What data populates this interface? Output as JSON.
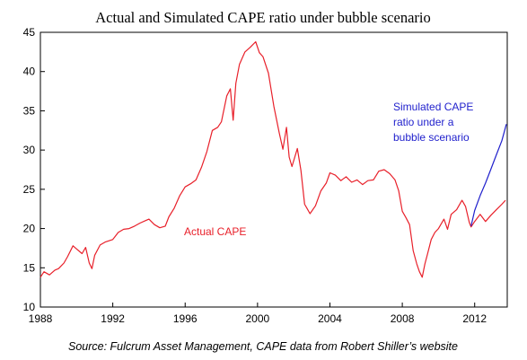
{
  "chart_data": {
    "type": "line",
    "title": "Actual and Simulated CAPE ratio under bubble scenario",
    "xlim": [
      1988,
      2013.8
    ],
    "ylim": [
      10,
      45
    ],
    "x_ticks": [
      "1988",
      "1992",
      "1996",
      "2000",
      "2004",
      "2008",
      "2012"
    ],
    "y_ticks": [
      "10",
      "15",
      "20",
      "25",
      "30",
      "35",
      "40",
      "45"
    ],
    "grid": false,
    "series": [
      {
        "name": "Actual CAPE",
        "color": "#e8202a",
        "label_lines": [
          "Actual CAPE"
        ],
        "x": [
          1988.0,
          1988.2,
          1988.5,
          1988.8,
          1989.0,
          1989.3,
          1989.5,
          1989.8,
          1990.0,
          1990.3,
          1990.5,
          1990.7,
          1990.85,
          1991.0,
          1991.3,
          1991.6,
          1992.0,
          1992.3,
          1992.6,
          1992.9,
          1993.2,
          1993.5,
          1993.8,
          1994.0,
          1994.3,
          1994.6,
          1994.9,
          1995.1,
          1995.4,
          1995.7,
          1996.0,
          1996.3,
          1996.6,
          1996.9,
          1997.2,
          1997.5,
          1997.8,
          1998.0,
          1998.3,
          1998.5,
          1998.65,
          1998.8,
          1999.0,
          1999.3,
          1999.6,
          1999.9,
          2000.1,
          2000.3,
          2000.6,
          2000.9,
          2001.2,
          2001.4,
          2001.6,
          2001.75,
          2001.9,
          2002.2,
          2002.4,
          2002.6,
          2002.75,
          2002.9,
          2003.2,
          2003.5,
          2003.8,
          2004.0,
          2004.3,
          2004.6,
          2004.9,
          2005.2,
          2005.5,
          2005.8,
          2006.1,
          2006.4,
          2006.7,
          2007.0,
          2007.3,
          2007.6,
          2007.8,
          2008.0,
          2008.2,
          2008.4,
          2008.6,
          2008.8,
          2008.95,
          2009.1,
          2009.25,
          2009.4,
          2009.6,
          2009.8,
          2010.0,
          2010.3,
          2010.5,
          2010.7,
          2011.0,
          2011.3,
          2011.5,
          2011.7,
          2011.8,
          2012.0,
          2012.3,
          2012.6,
          2012.9,
          2013.2,
          2013.5,
          2013.7
        ],
        "y": [
          13.8,
          14.5,
          14.1,
          14.7,
          14.9,
          15.6,
          16.4,
          17.8,
          17.4,
          16.8,
          17.6,
          15.6,
          14.9,
          16.6,
          17.9,
          18.3,
          18.6,
          19.5,
          19.9,
          20.0,
          20.3,
          20.7,
          21.0,
          21.2,
          20.5,
          20.1,
          20.3,
          21.5,
          22.6,
          24.2,
          25.3,
          25.7,
          26.2,
          27.8,
          29.8,
          32.5,
          32.9,
          33.6,
          36.9,
          37.8,
          33.8,
          38.5,
          40.9,
          42.5,
          43.1,
          43.8,
          42.4,
          41.9,
          39.8,
          35.6,
          32.2,
          30.1,
          32.9,
          29.1,
          27.9,
          30.2,
          27.4,
          23.1,
          22.5,
          21.9,
          22.9,
          24.8,
          25.8,
          27.1,
          26.8,
          26.1,
          26.6,
          25.9,
          26.2,
          25.6,
          26.1,
          26.2,
          27.3,
          27.5,
          27.0,
          26.2,
          24.8,
          22.2,
          21.4,
          20.5,
          17.2,
          15.5,
          14.5,
          13.8,
          15.5,
          16.8,
          18.6,
          19.5,
          20.0,
          21.2,
          19.9,
          21.8,
          22.4,
          23.6,
          22.8,
          20.8,
          20.2,
          20.9,
          21.8,
          20.9,
          21.7,
          22.4,
          23.1,
          23.6
        ]
      },
      {
        "name": "Simulated CAPE ratio under a bubble scenario",
        "color": "#1f1fcc",
        "label_lines": [
          "Simulated CAPE",
          "ratio under a",
          "bubble scenario"
        ],
        "x": [
          2011.8,
          2012.0,
          2012.3,
          2012.6,
          2012.9,
          2013.2,
          2013.5,
          2013.75
        ],
        "y": [
          20.3,
          22.3,
          24.2,
          25.8,
          27.6,
          29.4,
          31.2,
          33.3
        ]
      }
    ],
    "source": "Source: Fulcrum Asset Management, CAPE data from Robert Shiller’s website"
  }
}
